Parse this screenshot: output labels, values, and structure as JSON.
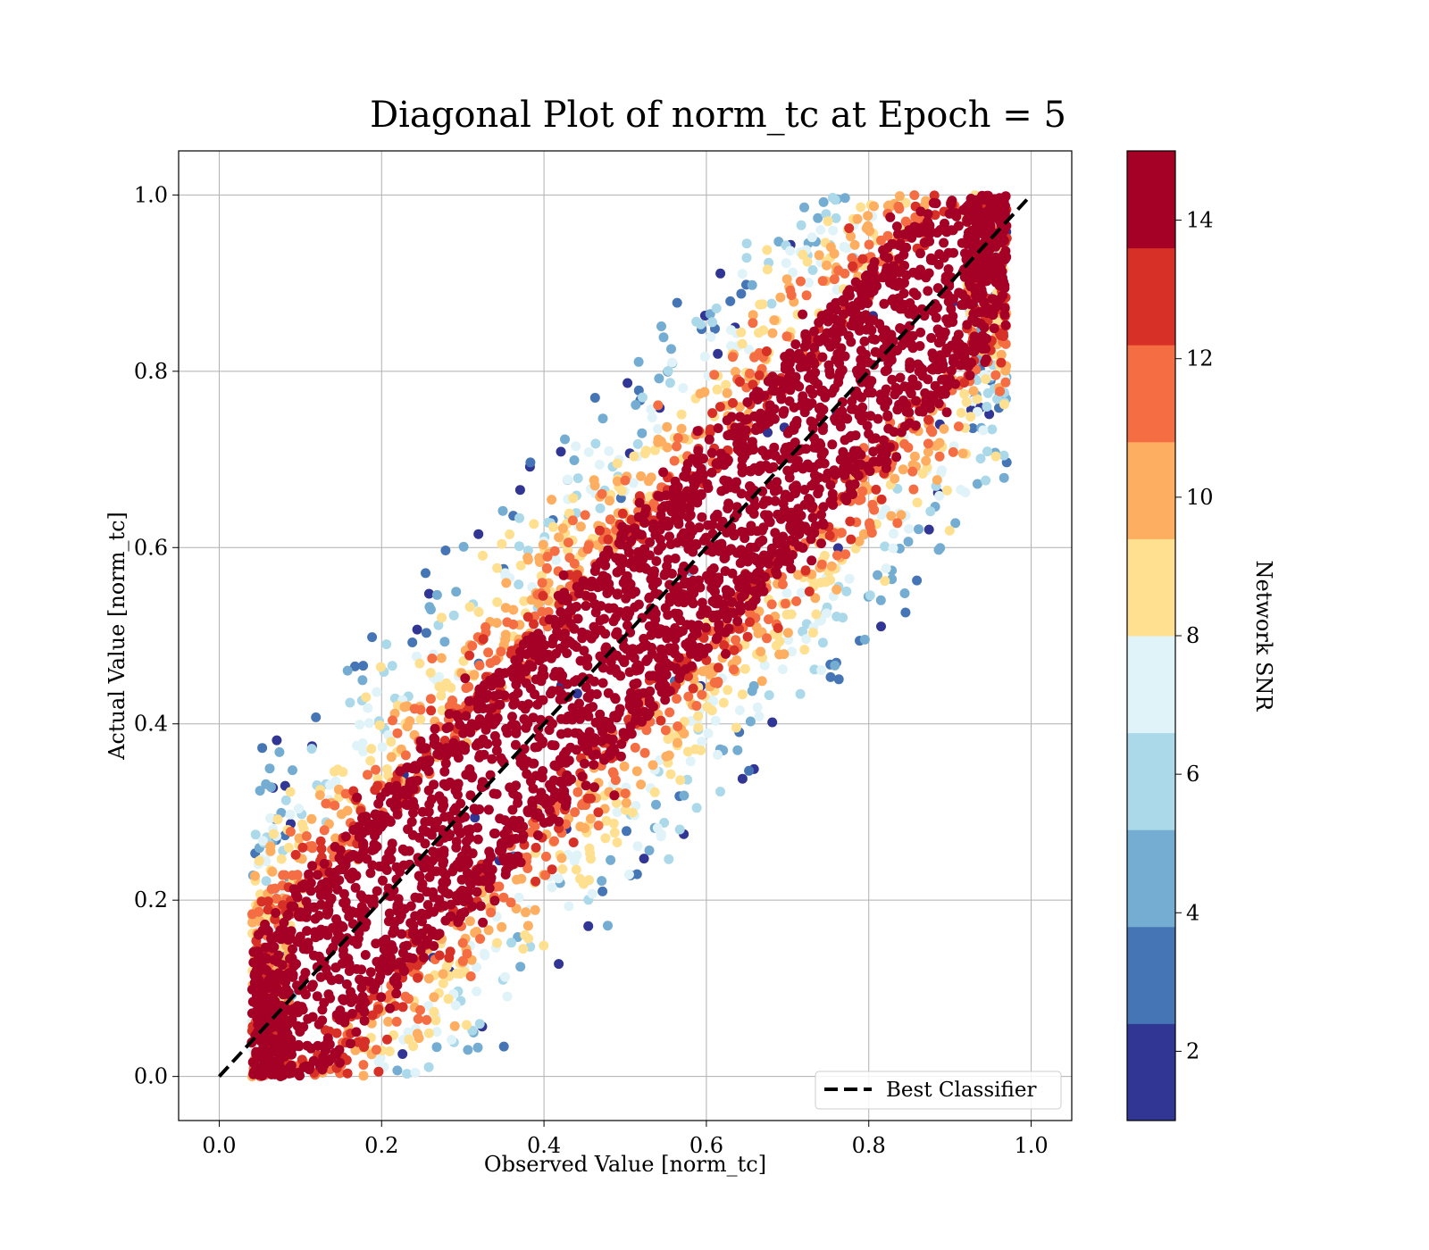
{
  "chart_data": {
    "type": "scatter",
    "title": "Diagonal Plot of norm_tc at Epoch = 5",
    "xlabel": "Observed Value [norm_tc]",
    "ylabel": "Actual Value [norm_tc]",
    "xlim": [
      -0.05,
      1.05
    ],
    "ylim": [
      -0.05,
      1.05
    ],
    "xticks": [
      "0.0",
      "0.2",
      "0.4",
      "0.6",
      "0.8",
      "1.0"
    ],
    "yticks": [
      "0.0",
      "0.2",
      "0.4",
      "0.6",
      "0.8",
      "1.0"
    ],
    "grid": true,
    "legend": {
      "position": "lower-right",
      "entries": [
        "Best Classifier"
      ]
    },
    "reference_line": {
      "name": "Best Classifier",
      "style": "dashed",
      "color": "#000000",
      "x": [
        0,
        1
      ],
      "y": [
        0,
        1
      ]
    },
    "colorbar": {
      "label": "Network SNR",
      "range": [
        1,
        15
      ],
      "ticks": [
        "2",
        "4",
        "6",
        "8",
        "10",
        "12",
        "14"
      ],
      "levels": [
        "#313695",
        "#4575b4",
        "#74add1",
        "#abd9e9",
        "#e0f3f8",
        "#fee090",
        "#fdae61",
        "#f46d43",
        "#d73027",
        "#a50026"
      ]
    },
    "scatter_pattern": {
      "description_stats": {
        "high_snr_band_halfwidth": 0.12,
        "x_offset_range": [
          -0.32,
          0.32
        ],
        "observed_x_clip": [
          0.04,
          0.97
        ],
        "actual_y_range": [
          0,
          1
        ]
      }
    }
  }
}
